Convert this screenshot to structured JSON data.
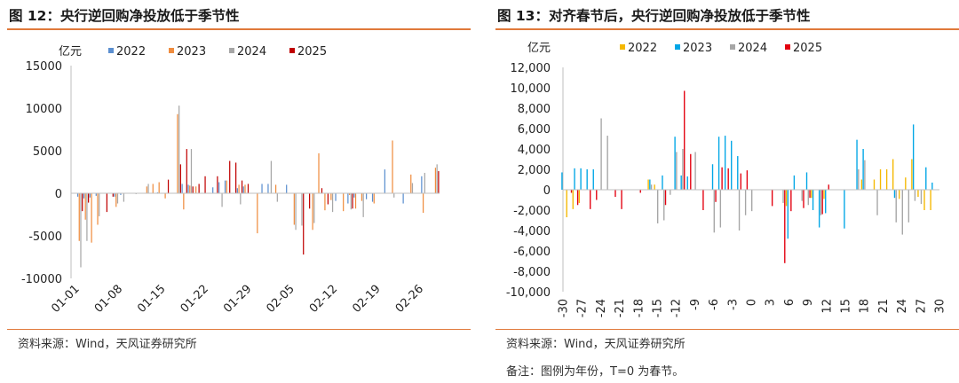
{
  "charts": [
    {
      "title": "图 12：央行逆回购净投放低于季节性",
      "source": "资料来源：Wind，天风证券研究所"
    },
    {
      "title": "图 13：对齐春节后，央行逆回购净投放低于季节性",
      "source": "资料来源：Wind，天风证券研究所",
      "note": "备注：图例为年份，T=0 为春节。"
    }
  ],
  "chart_data": [
    {
      "type": "bar",
      "title": "图 12：央行逆回购净投放低于季节性",
      "unit": "亿元",
      "ylim": [
        -10000,
        15000
      ],
      "yticks": [
        15000,
        10000,
        5000,
        0,
        -5000,
        -10000
      ],
      "x_ticks": [
        "01-01",
        "01-08",
        "01-15",
        "01-22",
        "01-29",
        "02-05",
        "02-12",
        "02-19",
        "02-26"
      ],
      "days": 60,
      "legend": "top",
      "colors": {
        "2022": "#5b8fd0",
        "2023": "#ef8c3e",
        "2024": "#a6a6a6",
        "2025": "#c00000"
      },
      "series": [
        {
          "name": "2022",
          "values": [
            0,
            -400,
            -600,
            -500,
            -300,
            0,
            0,
            -400,
            -200,
            0,
            0,
            0,
            0,
            0,
            100,
            0,
            0,
            0,
            1100,
            1000,
            0,
            0,
            0,
            700,
            1300,
            1500,
            0,
            600,
            800,
            0,
            0,
            1100,
            1100,
            0,
            0,
            1000,
            0,
            0,
            0,
            0,
            0,
            0,
            0,
            -900,
            0,
            -1200,
            -500,
            0,
            -700,
            -1000,
            0,
            2800,
            0,
            0,
            -1200,
            0,
            0,
            2000,
            0,
            0
          ]
        },
        {
          "name": "2023",
          "values": [
            0,
            -5600,
            -3100,
            -5800,
            -3700,
            0,
            0,
            -1600,
            0,
            0,
            0,
            0,
            800,
            1100,
            1300,
            -600,
            0,
            9300,
            -1900,
            900,
            800,
            0,
            0,
            0,
            0,
            1500,
            0,
            1000,
            1000,
            0,
            -4700,
            0,
            0,
            1000,
            0,
            0,
            -3700,
            0,
            0,
            -4300,
            4700,
            -2000,
            -800,
            0,
            -2100,
            -200,
            -1800,
            -900,
            0,
            -1200,
            0,
            0,
            6200,
            0,
            0,
            2200,
            0,
            -2300,
            0,
            3000
          ]
        },
        {
          "name": "2024",
          "values": [
            0,
            -8700,
            -5600,
            0,
            -2700,
            0,
            0,
            -1200,
            -1000,
            0,
            -100,
            0,
            1100,
            0,
            0,
            0,
            0,
            10300,
            0,
            5200,
            0,
            0,
            0,
            0,
            -1600,
            0,
            0,
            -1300,
            0,
            0,
            0,
            0,
            3800,
            -1000,
            0,
            0,
            -4300,
            -3800,
            0,
            -3500,
            0,
            0,
            -2200,
            0,
            0,
            -1900,
            0,
            -2800,
            0,
            0,
            0,
            0,
            -500,
            0,
            0,
            1200,
            0,
            2400,
            0,
            3400
          ]
        },
        {
          "name": "2025",
          "values": [
            0,
            -2100,
            -1100,
            0,
            0,
            -2200,
            -400,
            0,
            0,
            0,
            0,
            0,
            0,
            0,
            0,
            1600,
            0,
            3400,
            5200,
            800,
            1100,
            2000,
            0,
            2000,
            0,
            3800,
            3600,
            1500,
            1100,
            0,
            0,
            0,
            0,
            0,
            0,
            0,
            0,
            -7200,
            -1800,
            0,
            600,
            -1300,
            0,
            0,
            0,
            -1800,
            0,
            0,
            0,
            0,
            0,
            0,
            0,
            0,
            0,
            0,
            0,
            0,
            0,
            2600
          ]
        }
      ]
    },
    {
      "type": "bar",
      "title": "图 13：对齐春节后，央行逆回购净投放低于季节性",
      "unit": "亿元",
      "xlabel_note": "T=0 为春节",
      "ylim": [
        -10000,
        12000
      ],
      "yticks": [
        12000,
        10000,
        8000,
        6000,
        4000,
        2000,
        0,
        -2000,
        -4000,
        -6000,
        -8000,
        -10000
      ],
      "ytick_labels": [
        "12,000",
        "10,000",
        "8,000",
        "6,000",
        "4,000",
        "2,000",
        "0",
        "-2,000",
        "-4,000",
        "-6,000",
        "-8,000",
        "-10,000"
      ],
      "x_min": -30,
      "x_max": 30,
      "x_ticks": [
        -30,
        -27,
        -24,
        -21,
        -18,
        -15,
        -12,
        -9,
        -6,
        -3,
        0,
        3,
        6,
        9,
        12,
        15,
        18,
        21,
        24,
        27,
        30
      ],
      "legend": "top",
      "colors": {
        "2022": "#f5b800",
        "2023": "#00a6e6",
        "2024": "#a6a6a6",
        "2025": "#e3000f"
      },
      "series": [
        {
          "name": "2022",
          "values": [
            0,
            -2700,
            -1900,
            -1300,
            0,
            0,
            0,
            0,
            0,
            0,
            0,
            0,
            0,
            0,
            1000,
            500,
            0,
            0,
            0,
            0,
            0,
            0,
            0,
            0,
            0,
            0,
            0,
            0,
            0,
            0,
            0,
            0,
            0,
            0,
            0,
            0,
            -1600,
            0,
            0,
            0,
            -800,
            0,
            -900,
            0,
            0,
            0,
            0,
            0,
            1000,
            0,
            1000,
            2000,
            2000,
            3000,
            -900,
            1200,
            3000,
            -700,
            -2000,
            -2000,
            0
          ]
        },
        {
          "name": "2023",
          "values": [
            1700,
            0,
            2100,
            2100,
            2000,
            2000,
            0,
            0,
            0,
            0,
            0,
            0,
            0,
            0,
            1000,
            0,
            1400,
            0,
            5200,
            1400,
            1300,
            0,
            0,
            0,
            2500,
            5200,
            5300,
            4800,
            3300,
            0,
            0,
            0,
            0,
            0,
            0,
            0,
            -4800,
            1400,
            0,
            1700,
            -2000,
            -3700,
            -2300,
            0,
            0,
            -3800,
            0,
            4900,
            4000,
            0,
            0,
            0,
            0,
            -800,
            0,
            0,
            6400,
            0,
            2200,
            700,
            0
          ]
        },
        {
          "name": "2024",
          "values": [
            0,
            0,
            0,
            0,
            0,
            0,
            7000,
            5300,
            0,
            0,
            0,
            0,
            0,
            0,
            500,
            -3300,
            -3000,
            -500,
            3700,
            4000,
            0,
            3700,
            0,
            0,
            -4200,
            -3700,
            0,
            0,
            -4000,
            -2500,
            -2100,
            0,
            0,
            0,
            0,
            -1300,
            0,
            0,
            -1100,
            -1500,
            0,
            -2500,
            0,
            0,
            0,
            0,
            0,
            2000,
            2900,
            0,
            -2500,
            0,
            0,
            -3200,
            -4400,
            -3200,
            -1100,
            -1400,
            0,
            0,
            0
          ]
        },
        {
          "name": "2025",
          "values": [
            0,
            -300,
            -1500,
            0,
            -1900,
            -1000,
            0,
            0,
            -700,
            -1900,
            0,
            0,
            -300,
            0,
            0,
            0,
            -1500,
            0,
            0,
            9700,
            3500,
            0,
            -2000,
            0,
            -1200,
            2200,
            2100,
            0,
            1600,
            1900,
            0,
            0,
            0,
            -1600,
            0,
            -7200,
            -2100,
            0,
            -1800,
            -800,
            0,
            -2400,
            500,
            0,
            0,
            0,
            0,
            0,
            0,
            0,
            0,
            0,
            0,
            0,
            0,
            0,
            0,
            0,
            0,
            0,
            0
          ]
        }
      ]
    }
  ]
}
